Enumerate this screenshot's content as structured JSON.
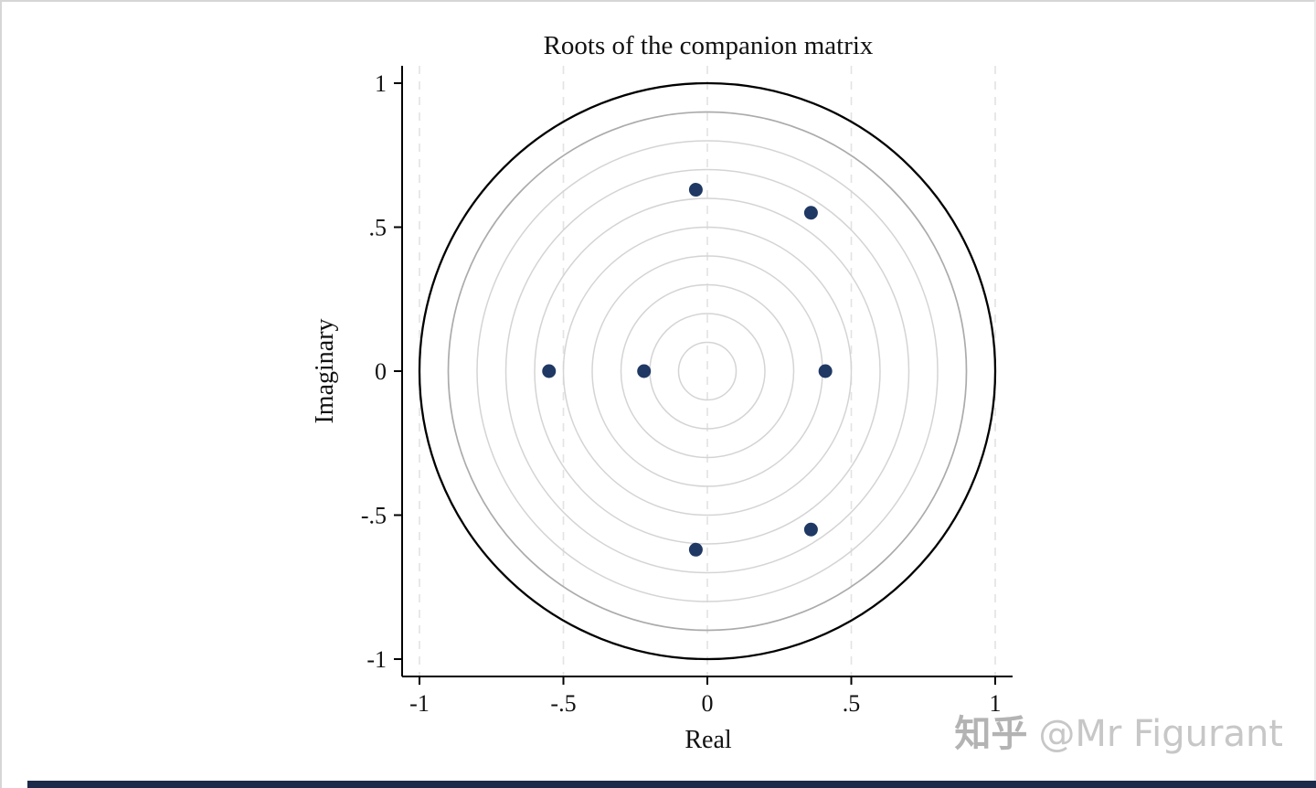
{
  "page": {
    "background": "#ffffff",
    "bottom_bar_color": "#1b2a4a"
  },
  "watermark": {
    "brand": "知乎",
    "handle": "@Mr Figurant"
  },
  "chart_data": {
    "type": "scatter",
    "title": "Roots of the companion matrix",
    "xlabel": "Real",
    "ylabel": "Imaginary",
    "xlim": [
      -1,
      1
    ],
    "ylim": [
      -1,
      1
    ],
    "grid": true,
    "legend": "none",
    "xticks": {
      "values": [
        -1,
        -0.5,
        0,
        0.5,
        1
      ],
      "labels": [
        "-1",
        "-.5",
        "0",
        ".5",
        "1"
      ]
    },
    "yticks": {
      "values": [
        1,
        0.5,
        0,
        -0.5,
        -1
      ],
      "labels": [
        "1",
        ".5",
        "0",
        "-.5",
        "-1"
      ]
    },
    "vgrid": {
      "at": [
        -1,
        -0.5,
        0,
        0.5,
        1
      ],
      "color": "#e3e3e3",
      "dashed": true
    },
    "unit_circle": {
      "radius": 1,
      "color": "#000000"
    },
    "grid_circles": {
      "radii": [
        0.1,
        0.2,
        0.3,
        0.4,
        0.5,
        0.6,
        0.7,
        0.8
      ],
      "color": "#d4d4d4",
      "emph_radius": 0.9,
      "emph_color": "#ababab"
    },
    "points": [
      {
        "re": -0.04,
        "im": 0.63
      },
      {
        "re": 0.36,
        "im": 0.55
      },
      {
        "re": -0.55,
        "im": 0
      },
      {
        "re": -0.22,
        "im": 0
      },
      {
        "re": 0.41,
        "im": 0
      },
      {
        "re": 0.36,
        "im": -0.55
      },
      {
        "re": -0.04,
        "im": -0.62
      }
    ],
    "point_color": "#1f3864",
    "axis_color": "#000000"
  }
}
